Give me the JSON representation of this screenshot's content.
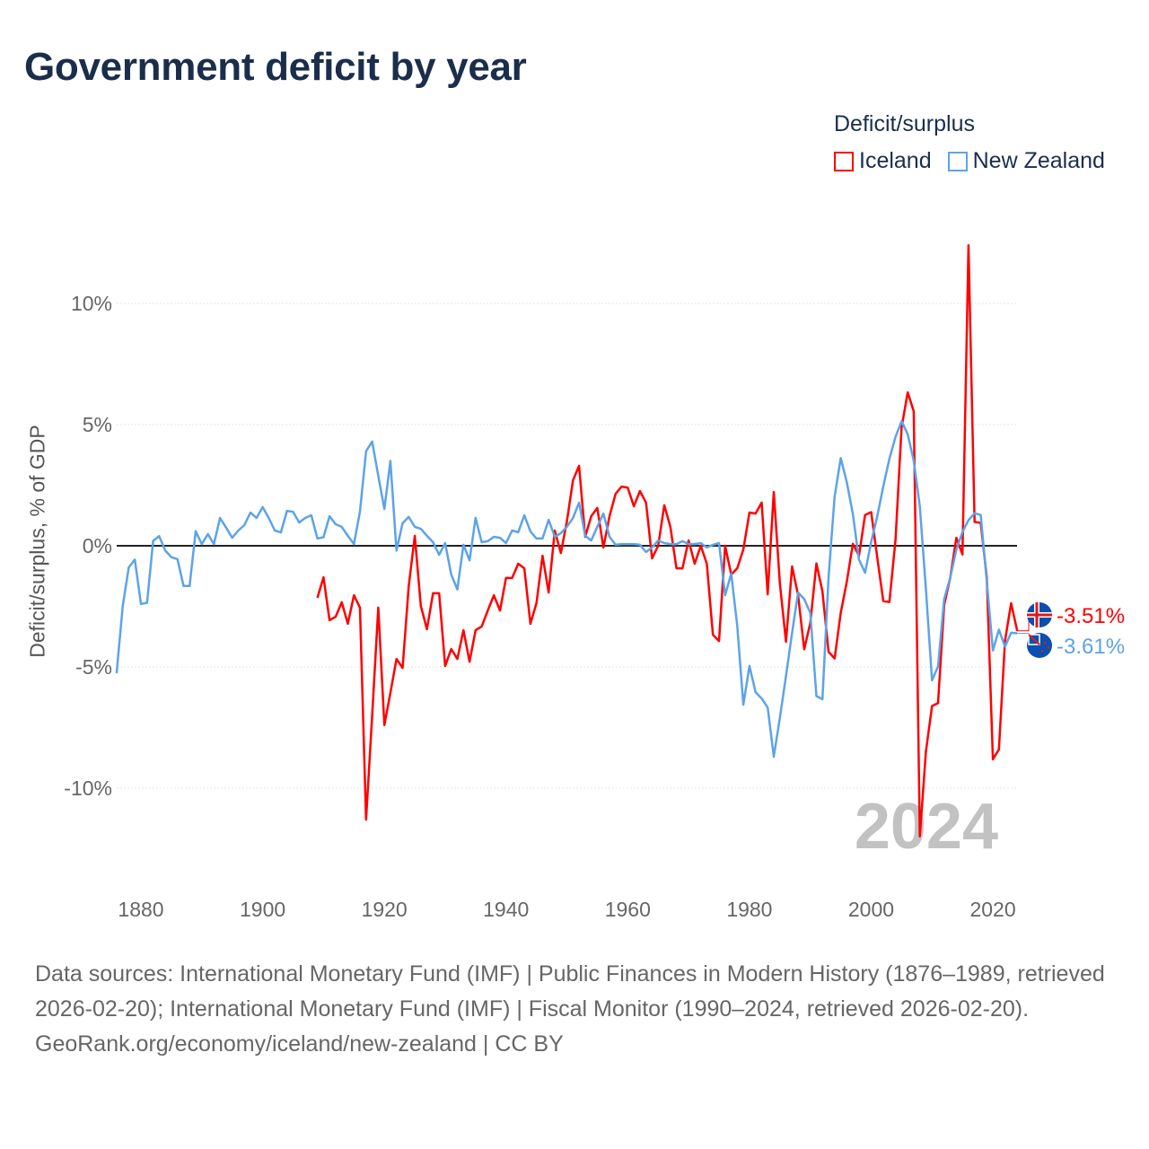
{
  "title": "Government deficit by year",
  "legend": {
    "title": "Deficit/surplus",
    "items": [
      {
        "label": "Iceland",
        "color": "#ff0000"
      },
      {
        "label": "New Zealand",
        "color": "#5ca3ea"
      }
    ]
  },
  "year_watermark": "2024",
  "footer": {
    "sources": "Data sources: International Monetary Fund (IMF) | Public Finances in Modern History (1876–1989, retrieved 2026-02-20); International Monetary Fund (IMF) | Fiscal Monitor (1990–2024, retrieved 2026-02-20).",
    "link": "GeoRank.org/economy/iceland/new-zealand | CC BY"
  },
  "chart_data": {
    "type": "line",
    "title": "Government deficit by year",
    "xlabel": "",
    "ylabel": "Deficit/surplus, % of GDP",
    "xlim": [
      1876,
      2024
    ],
    "ylim": [
      -13,
      13
    ],
    "x_ticks": [
      1880,
      1900,
      1920,
      1940,
      1960,
      1980,
      2000,
      2020
    ],
    "y_ticks": [
      {
        "value": 10,
        "label": "10%"
      },
      {
        "value": 5,
        "label": "5%"
      },
      {
        "value": 0,
        "label": "0%"
      },
      {
        "value": -5,
        "label": "-5%"
      },
      {
        "value": -10,
        "label": "-10%"
      }
    ],
    "grid": true,
    "legend_position": "top-right",
    "series": [
      {
        "name": "Iceland",
        "color": "#ff0000",
        "start_year": 1909,
        "end_label": "-3.51%",
        "flag": "iceland",
        "values": [
          -2.15,
          -1.3,
          -3.07,
          -2.93,
          -2.33,
          -3.22,
          -2.04,
          -2.55,
          -11.3,
          -7.0,
          -2.55,
          -7.4,
          -6.07,
          -4.67,
          -5.04,
          -1.67,
          0.41,
          -2.48,
          -3.44,
          -1.96,
          -1.96,
          -4.96,
          -4.26,
          -4.67,
          -3.48,
          -4.78,
          -3.48,
          -3.33,
          -2.67,
          -2.04,
          -2.67,
          -1.33,
          -1.33,
          -0.74,
          -0.93,
          -3.22,
          -2.37,
          -0.41,
          -1.93,
          0.63,
          -0.3,
          1.0,
          2.7,
          3.3,
          0.37,
          1.22,
          1.56,
          -0.07,
          1.22,
          2.15,
          2.44,
          2.4,
          1.63,
          2.26,
          1.78,
          -0.52,
          0.0,
          1.67,
          0.78,
          -0.93,
          -0.93,
          0.22,
          -0.74,
          0.0,
          -0.74,
          -3.67,
          -3.93,
          0.0,
          -1.19,
          -0.93,
          -0.15,
          1.37,
          1.33,
          1.78,
          -2.0,
          2.22,
          -1.56,
          -3.96,
          -0.85,
          -2.04,
          -4.27,
          -3.18,
          -0.73,
          -1.88,
          -4.37,
          -4.65,
          -2.77,
          -1.47,
          0.08,
          -0.41,
          1.27,
          1.39,
          -0.49,
          -2.28,
          -2.32,
          0.24,
          4.89,
          6.33,
          5.55,
          -11.99,
          -8.48,
          -6.61,
          -6.49,
          -2.45,
          -1.31,
          0.33,
          -0.36,
          12.4,
          0.98,
          0.95,
          -1.31,
          -8.81,
          -8.4,
          -3.92,
          -2.37,
          -3.51
        ]
      },
      {
        "name": "New Zealand",
        "color": "#5ca3ea",
        "start_year": 1876,
        "end_label": "-3.61%",
        "flag": "new-zealand",
        "values": [
          -5.26,
          -2.5,
          -0.9,
          -0.57,
          -2.4,
          -2.35,
          0.2,
          0.4,
          -0.2,
          -0.47,
          -0.55,
          -1.66,
          -1.66,
          0.6,
          0.07,
          0.48,
          0.07,
          1.15,
          0.75,
          0.33,
          0.63,
          0.85,
          1.37,
          1.15,
          1.6,
          1.15,
          0.63,
          0.55,
          1.44,
          1.4,
          0.96,
          1.15,
          1.26,
          0.3,
          0.35,
          1.22,
          0.89,
          0.78,
          0.41,
          0.07,
          1.41,
          3.9,
          4.3,
          2.89,
          1.52,
          3.5,
          -0.2,
          0.93,
          1.19,
          0.78,
          0.7,
          0.41,
          0.15,
          -0.37,
          0.11,
          -1.19,
          -1.8,
          0.04,
          -0.6,
          1.15,
          0.15,
          0.19,
          0.37,
          0.33,
          0.11,
          0.63,
          0.56,
          1.26,
          0.59,
          0.3,
          0.3,
          1.07,
          0.37,
          0.52,
          0.78,
          1.15,
          1.78,
          0.41,
          0.22,
          0.78,
          1.33,
          0.37,
          0.04,
          0.07,
          0.07,
          0.07,
          0.04,
          -0.26,
          -0.07,
          0.22,
          0.11,
          0.07,
          0.07,
          0.19,
          0.07,
          0.07,
          0.11,
          -0.07,
          0.04,
          0.11,
          -2.04,
          -1.15,
          -3.3,
          -6.56,
          -4.96,
          -6.04,
          -6.3,
          -6.67,
          -8.7,
          -7.1,
          -5.37,
          -3.59,
          -1.93,
          -2.2,
          -2.77,
          -6.2,
          -6.33,
          -1.31,
          2.04,
          3.62,
          2.61,
          1.31,
          -0.57,
          -1.11,
          0.16,
          1.22,
          2.45,
          3.59,
          4.49,
          5.14,
          4.6,
          3.51,
          1.63,
          -1.8,
          -5.55,
          -4.98,
          -2.2,
          -1.31,
          -0.16,
          0.57,
          1.06,
          1.34,
          1.27,
          -1.47,
          -4.32,
          -3.46,
          -4.16,
          -3.59,
          -3.61
        ]
      }
    ]
  }
}
